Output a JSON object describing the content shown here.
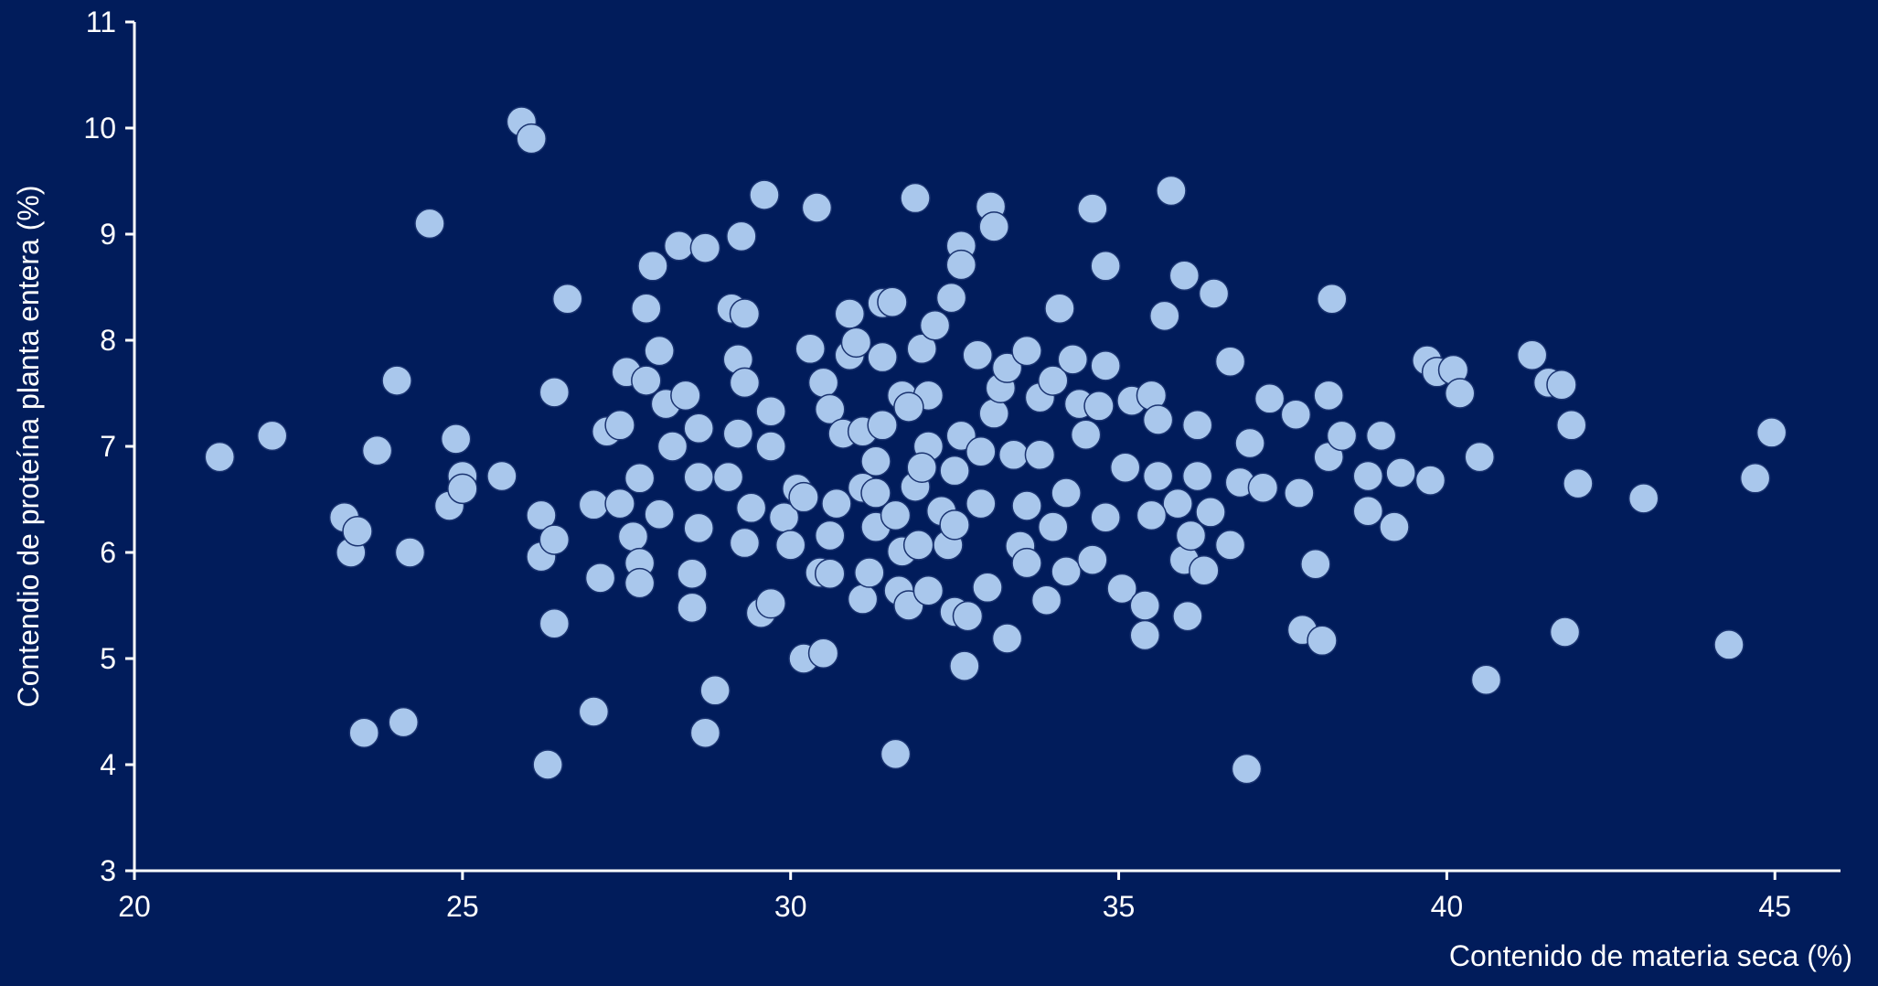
{
  "chart_data": {
    "type": "scatter",
    "x_label": "Contenido de materia seca  (%)",
    "y_label": "Contendio de proteína planta entera (%)",
    "color": "#a9c7ec",
    "xlim": [
      20,
      46
    ],
    "xticks": [
      20,
      25,
      30,
      35,
      40,
      45
    ],
    "ylim": [
      3,
      11
    ],
    "yticks": [
      3,
      4,
      5,
      6,
      7,
      8,
      9,
      10,
      11
    ],
    "x": [
      21.3,
      22.1,
      23.2,
      23.3,
      23.4,
      23.5,
      23.7,
      24.0,
      24.1,
      24.2,
      24.5,
      24.8,
      24.9,
      25.0,
      25.0,
      25.6,
      25.9,
      26.05,
      26.2,
      26.2,
      26.3,
      26.4,
      26.4,
      26.4,
      26.6,
      27.0,
      27.0,
      27.1,
      27.2,
      27.4,
      27.4,
      27.5,
      27.6,
      27.7,
      27.7,
      27.7,
      27.8,
      27.8,
      27.9,
      28.0,
      28.0,
      28.1,
      28.2,
      28.3,
      28.4,
      28.5,
      28.5,
      28.6,
      28.6,
      28.6,
      28.7,
      28.7,
      28.85,
      29.05,
      29.1,
      29.2,
      29.2,
      29.25,
      29.3,
      29.3,
      29.3,
      29.4,
      29.55,
      29.6,
      29.7,
      29.7,
      29.7,
      29.9,
      30.0,
      30.1,
      30.2,
      30.2,
      30.3,
      30.4,
      30.45,
      30.5,
      30.5,
      30.6,
      30.6,
      30.6,
      30.8,
      30.9,
      30.9,
      31.0,
      31.1,
      31.1,
      31.1,
      31.2,
      31.3,
      31.3,
      31.4,
      31.4,
      31.4,
      31.55,
      31.6,
      31.6,
      31.65,
      31.7,
      31.7,
      31.8,
      31.9,
      31.9,
      31.95,
      32.0,
      32.1,
      32.1,
      32.1,
      32.2,
      32.3,
      32.4,
      32.45,
      32.5,
      32.5,
      32.5,
      32.6,
      32.6,
      32.6,
      32.65,
      32.7,
      32.85,
      32.9,
      33.0,
      33.05,
      33.1,
      33.1,
      33.2,
      33.3,
      33.3,
      33.4,
      33.5,
      33.6,
      33.6,
      33.6,
      33.8,
      33.9,
      34.0,
      34.1,
      34.2,
      34.2,
      34.3,
      34.4,
      34.5,
      34.6,
      34.6,
      34.7,
      34.8,
      34.8,
      34.8,
      35.05,
      35.1,
      35.2,
      35.4,
      35.4,
      35.5,
      35.6,
      35.6,
      35.7,
      35.8,
      35.9,
      36.0,
      36.0,
      36.05,
      36.1,
      36.2,
      36.2,
      36.3,
      36.45,
      36.4,
      36.7,
      36.7,
      36.85,
      36.95,
      37.0,
      37.2,
      37.3,
      37.7,
      37.75,
      37.8,
      38.0,
      38.1,
      38.2,
      38.2,
      38.25,
      38.4,
      38.8,
      38.8,
      39.0,
      39.2,
      39.3,
      39.75,
      39.7,
      39.85,
      40.1,
      40.2,
      40.5,
      40.6,
      41.3,
      41.55,
      41.75,
      41.8,
      41.9,
      42.0,
      43.0,
      44.3,
      44.7,
      44.95,
      32.0,
      32.9,
      33.8,
      31.8,
      30.7,
      34.0,
      35.5,
      31.3
    ],
    "values": [
      6.9,
      7.1,
      6.33,
      6.0,
      6.2,
      4.3,
      6.96,
      7.62,
      4.4,
      6.0,
      9.1,
      6.44,
      7.07,
      6.72,
      6.6,
      6.72,
      10.06,
      9.9,
      6.35,
      5.96,
      4.0,
      7.51,
      5.33,
      6.12,
      8.39,
      6.45,
      4.5,
      5.76,
      7.14,
      7.2,
      6.46,
      7.7,
      6.15,
      6.7,
      5.9,
      5.71,
      8.3,
      7.62,
      8.7,
      7.9,
      6.36,
      7.4,
      7.0,
      8.89,
      7.48,
      5.8,
      5.48,
      6.71,
      7.17,
      6.23,
      8.87,
      4.3,
      4.7,
      6.71,
      8.3,
      7.12,
      7.82,
      8.98,
      6.09,
      7.6,
      8.25,
      6.42,
      5.43,
      9.37,
      7.0,
      7.33,
      5.52,
      6.33,
      6.07,
      6.6,
      5.0,
      6.52,
      7.92,
      9.25,
      5.81,
      5.05,
      7.6,
      6.16,
      5.8,
      7.35,
      7.12,
      8.25,
      7.86,
      7.98,
      7.14,
      6.61,
      5.56,
      5.81,
      6.24,
      6.86,
      8.35,
      7.84,
      7.2,
      8.36,
      4.1,
      6.35,
      5.64,
      7.48,
      6.01,
      5.5,
      6.62,
      9.34,
      6.07,
      7.92,
      7.0,
      5.64,
      7.48,
      8.14,
      6.39,
      6.07,
      8.4,
      5.44,
      6.77,
      6.26,
      8.89,
      8.71,
      7.1,
      4.93,
      5.4,
      7.86,
      6.95,
      5.67,
      9.26,
      9.07,
      7.31,
      7.55,
      5.19,
      7.74,
      6.92,
      6.06,
      5.9,
      7.9,
      6.44,
      7.46,
      5.55,
      7.62,
      8.3,
      5.82,
      6.56,
      7.82,
      7.4,
      7.11,
      9.24,
      5.93,
      7.38,
      6.33,
      7.76,
      8.7,
      5.66,
      6.8,
      7.43,
      5.5,
      5.22,
      7.48,
      7.25,
      6.72,
      8.23,
      9.41,
      6.46,
      8.61,
      5.93,
      5.4,
      6.16,
      6.72,
      7.2,
      5.83,
      8.44,
      6.38,
      7.8,
      6.07,
      6.66,
      3.96,
      7.03,
      6.61,
      7.45,
      7.3,
      6.56,
      5.27,
      5.89,
      5.17,
      7.48,
      6.9,
      8.39,
      7.1,
      6.72,
      6.39,
      7.1,
      6.24,
      6.75,
      6.68,
      7.81,
      7.7,
      7.72,
      7.5,
      6.9,
      4.8,
      7.86,
      7.6,
      7.58,
      5.25,
      7.2,
      6.65,
      6.51,
      5.13,
      6.7,
      7.13,
      6.8,
      6.46,
      6.92,
      7.37,
      6.46,
      6.24,
      6.35,
      6.56
    ]
  }
}
